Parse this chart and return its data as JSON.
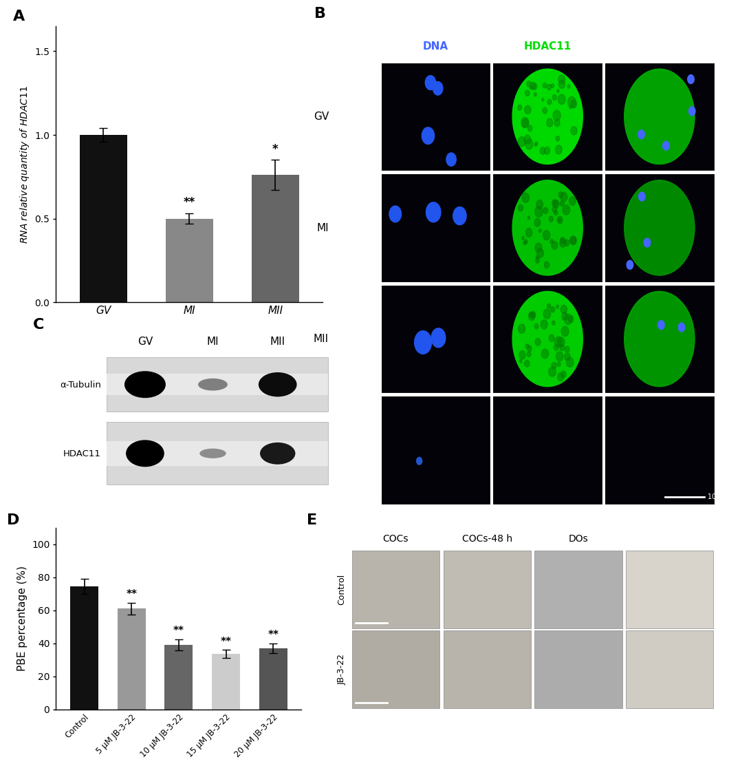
{
  "panel_A": {
    "categories": [
      "GV",
      "MI",
      "MII"
    ],
    "values": [
      1.0,
      0.5,
      0.76
    ],
    "errors": [
      0.04,
      0.03,
      0.09
    ],
    "colors": [
      "#111111",
      "#888888",
      "#666666"
    ],
    "ylim": [
      0,
      1.65
    ],
    "yticks": [
      0.0,
      0.5,
      1.0,
      1.5
    ],
    "significance": [
      "",
      "**",
      "*"
    ]
  },
  "panel_D": {
    "categories": [
      "Control",
      "5 μM JB-3-22",
      "10 μM JB-3-22",
      "15 μM JB-3-22",
      "20 μM JB-3-22"
    ],
    "values": [
      74.5,
      61.0,
      39.0,
      33.5,
      37.0
    ],
    "errors": [
      4.5,
      3.5,
      3.5,
      2.5,
      3.0
    ],
    "colors": [
      "#111111",
      "#999999",
      "#666666",
      "#cccccc",
      "#555555"
    ],
    "ylim": [
      0,
      110
    ],
    "yticks": [
      0,
      20,
      40,
      60,
      80,
      100
    ],
    "significance": [
      "",
      "**",
      "**",
      "**",
      "**"
    ]
  },
  "panel_label_fontsize": 16,
  "tick_fontsize": 10,
  "axis_label_fontsize": 11
}
